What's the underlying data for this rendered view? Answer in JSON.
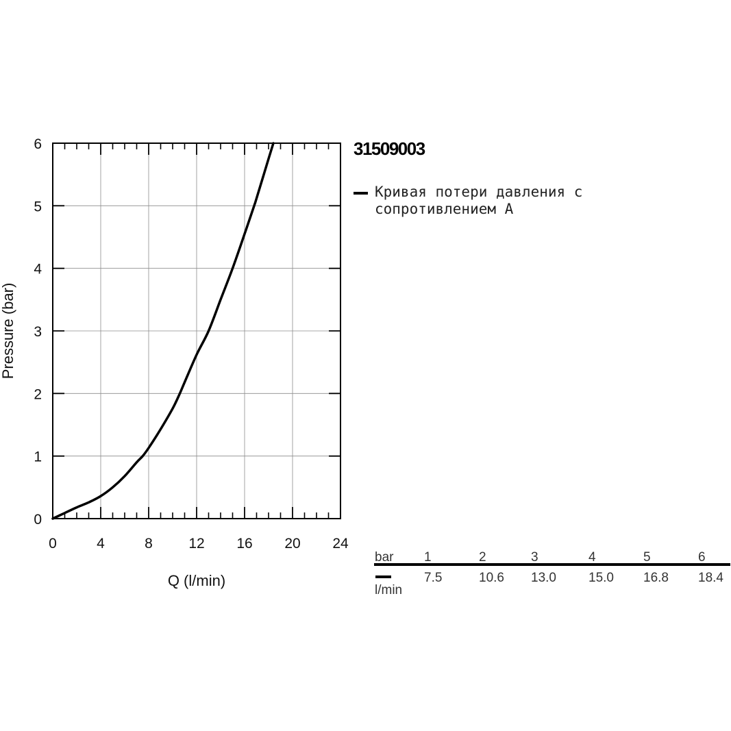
{
  "chart_data": {
    "type": "line",
    "title": "31509003",
    "xlabel": "Q (l/min)",
    "ylabel": "Pressure (bar)",
    "xlim": [
      0,
      24
    ],
    "ylim": [
      0,
      6
    ],
    "x_ticks": [
      "0",
      "4",
      "8",
      "12",
      "16",
      "20",
      "24"
    ],
    "y_ticks": [
      "0",
      "1",
      "2",
      "3",
      "4",
      "5",
      "6"
    ],
    "grid": true,
    "legend_position": "right",
    "series": [
      {
        "name": "Кривая потери давления с сопротивлением А",
        "color": "#000000",
        "x": [
          0,
          1,
          2,
          3,
          4,
          5,
          6,
          7,
          7.5,
          8,
          9,
          10,
          10.6,
          11,
          12,
          13,
          14,
          15,
          16,
          16.8,
          17,
          18,
          18.4
        ],
        "y": [
          0,
          0.09,
          0.18,
          0.26,
          0.36,
          0.5,
          0.68,
          0.9,
          1.0,
          1.13,
          1.43,
          1.76,
          2.0,
          2.18,
          2.62,
          3.0,
          3.5,
          4.0,
          4.55,
          5.0,
          5.12,
          5.75,
          6.0
        ]
      }
    ]
  },
  "table": {
    "row_header_pressure": "bar",
    "row_header_flow": "l/min",
    "pressure": [
      "1",
      "2",
      "3",
      "4",
      "5",
      "6"
    ],
    "flow": [
      "7.5",
      "10.6",
      "13.0",
      "15.0",
      "16.8",
      "18.4"
    ]
  }
}
